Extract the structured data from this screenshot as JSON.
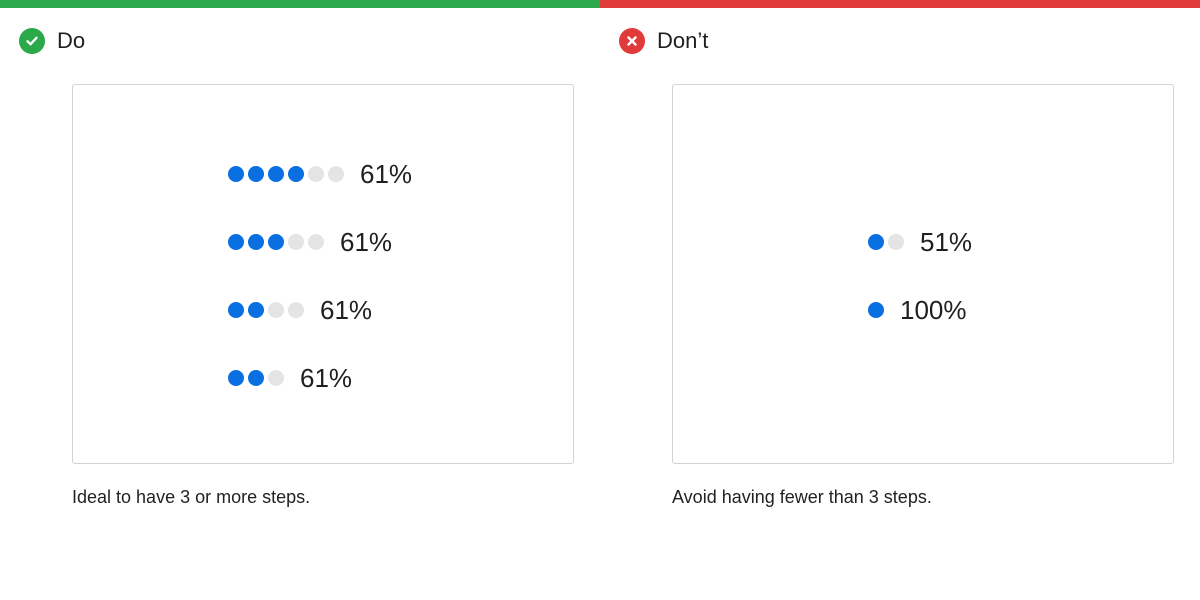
{
  "colors": {
    "do_accent": "#2aa84a",
    "dont_accent": "#e03a3a",
    "step_filled": "#0a6fe0",
    "step_empty": "#e4e4e4"
  },
  "do_panel": {
    "title": "Do",
    "icon": "checkmark-icon",
    "caption": "Ideal to have 3 or more steps.",
    "examples": [
      {
        "steps_total": 6,
        "steps_filled": 4,
        "label": "61%"
      },
      {
        "steps_total": 5,
        "steps_filled": 3,
        "label": "61%"
      },
      {
        "steps_total": 4,
        "steps_filled": 2,
        "label": "61%"
      },
      {
        "steps_total": 3,
        "steps_filled": 2,
        "label": "61%"
      }
    ]
  },
  "dont_panel": {
    "title": "Don’t",
    "icon": "cross-icon",
    "caption": "Avoid having fewer than 3 steps.",
    "examples": [
      {
        "steps_total": 2,
        "steps_filled": 1,
        "label": "51%"
      },
      {
        "steps_total": 1,
        "steps_filled": 1,
        "label": "100%"
      }
    ]
  }
}
